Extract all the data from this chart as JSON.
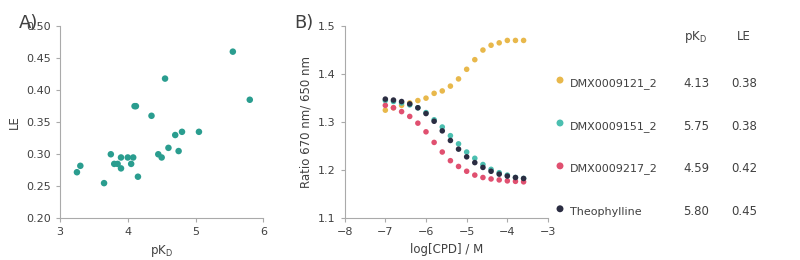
{
  "panel_a": {
    "title": "A)",
    "xlabel": "pK_D",
    "ylabel": "LE",
    "xlim": [
      3,
      6
    ],
    "ylim": [
      0.2,
      0.5
    ],
    "xticks": [
      3,
      4,
      5,
      6
    ],
    "yticks": [
      0.2,
      0.25,
      0.3,
      0.35,
      0.4,
      0.45,
      0.5
    ],
    "color": "#2a9d8f",
    "scatter_x": [
      3.25,
      3.3,
      3.65,
      3.75,
      3.8,
      3.85,
      3.9,
      3.9,
      4.0,
      4.05,
      4.08,
      4.1,
      4.12,
      4.15,
      4.35,
      4.45,
      4.5,
      4.55,
      4.6,
      4.7,
      4.75,
      4.8,
      5.05,
      5.55,
      5.8
    ],
    "scatter_y": [
      0.272,
      0.282,
      0.255,
      0.3,
      0.285,
      0.285,
      0.278,
      0.295,
      0.295,
      0.285,
      0.295,
      0.375,
      0.375,
      0.265,
      0.36,
      0.3,
      0.295,
      0.418,
      0.31,
      0.33,
      0.305,
      0.335,
      0.335,
      0.46,
      0.385
    ]
  },
  "panel_b": {
    "title": "B)",
    "xlabel": "log[CPD] / M",
    "ylabel": "Ratio 670 nm/ 650 nm",
    "xlim": [
      -8,
      -3
    ],
    "ylim": [
      1.1,
      1.5
    ],
    "xticks": [
      -8,
      -7,
      -6,
      -5,
      -4,
      -3
    ],
    "yticks": [
      1.1,
      1.2,
      1.3,
      1.4,
      1.5
    ],
    "series": [
      {
        "name": "DMX0009121_2",
        "pkd": "4.13",
        "le": "0.38",
        "color": "#e8b84b",
        "type": "increasing",
        "x": [
          -7.0,
          -6.8,
          -6.6,
          -6.4,
          -6.2,
          -6.0,
          -5.8,
          -5.6,
          -5.4,
          -5.2,
          -5.0,
          -4.8,
          -4.6,
          -4.4,
          -4.2,
          -4.0,
          -3.8,
          -3.6
        ],
        "y": [
          1.325,
          1.33,
          1.335,
          1.34,
          1.345,
          1.35,
          1.36,
          1.365,
          1.375,
          1.39,
          1.41,
          1.43,
          1.45,
          1.46,
          1.465,
          1.47,
          1.47,
          1.47
        ]
      },
      {
        "name": "DMX0009151_2",
        "pkd": "5.75",
        "le": "0.38",
        "color": "#4bbfb0",
        "type": "decreasing",
        "x": [
          -7.0,
          -6.8,
          -6.6,
          -6.4,
          -6.2,
          -6.0,
          -5.8,
          -5.6,
          -5.4,
          -5.2,
          -5.0,
          -4.8,
          -4.6,
          -4.4,
          -4.2,
          -4.0,
          -3.8,
          -3.6
        ],
        "y": [
          1.345,
          1.343,
          1.34,
          1.336,
          1.33,
          1.32,
          1.305,
          1.29,
          1.272,
          1.255,
          1.238,
          1.225,
          1.212,
          1.202,
          1.195,
          1.19,
          1.185,
          1.183
        ]
      },
      {
        "name": "DMX0009217_2",
        "pkd": "4.59",
        "le": "0.42",
        "color": "#e05070",
        "type": "decreasing",
        "x": [
          -7.0,
          -6.8,
          -6.6,
          -6.4,
          -6.2,
          -6.0,
          -5.8,
          -5.6,
          -5.4,
          -5.2,
          -5.0,
          -4.8,
          -4.6,
          -4.4,
          -4.2,
          -4.0,
          -3.8,
          -3.6
        ],
        "y": [
          1.335,
          1.33,
          1.322,
          1.312,
          1.298,
          1.28,
          1.258,
          1.238,
          1.22,
          1.208,
          1.198,
          1.19,
          1.185,
          1.182,
          1.18,
          1.178,
          1.177,
          1.176
        ]
      },
      {
        "name": "Theophylline",
        "pkd": "5.80",
        "le": "0.45",
        "color": "#2b2d42",
        "type": "decreasing",
        "x": [
          -7.0,
          -6.8,
          -6.6,
          -6.4,
          -6.2,
          -6.0,
          -5.8,
          -5.6,
          -5.4,
          -5.2,
          -5.0,
          -4.8,
          -4.6,
          -4.4,
          -4.2,
          -4.0,
          -3.8,
          -3.6
        ],
        "y": [
          1.348,
          1.346,
          1.343,
          1.338,
          1.33,
          1.318,
          1.302,
          1.282,
          1.262,
          1.244,
          1.228,
          1.216,
          1.206,
          1.198,
          1.192,
          1.188,
          1.185,
          1.183
        ]
      }
    ]
  },
  "background_color": "#ffffff",
  "text_color": "#404040",
  "font_size": 8.5
}
